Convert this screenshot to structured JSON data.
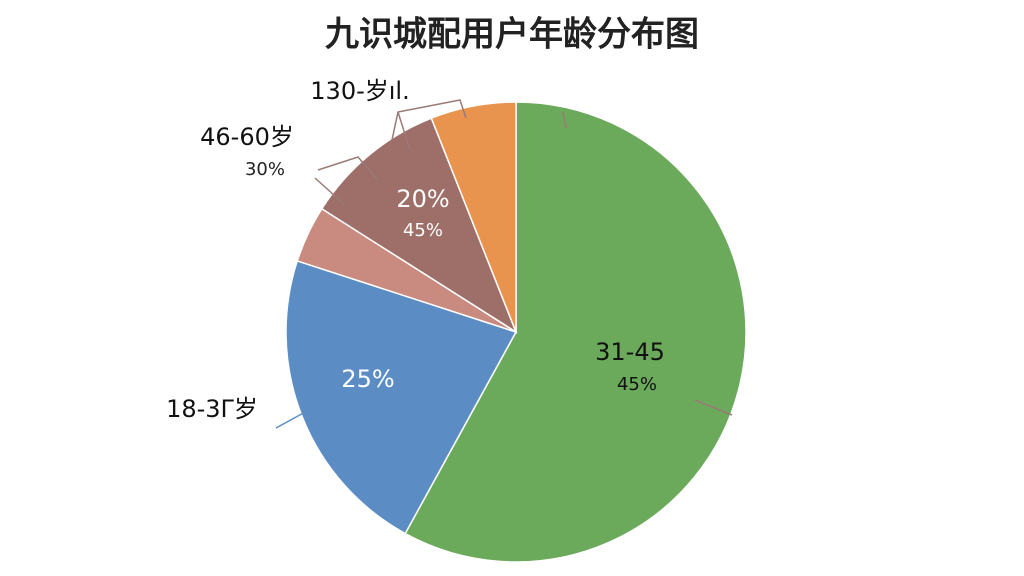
{
  "chart_data": {
    "type": "pie",
    "title": "九识城配用户年龄分布图",
    "categories": [
      "31-45",
      "18-3Γ岁",
      "46-60岁",
      null,
      "130-岁ıl."
    ],
    "values": [
      58,
      22,
      4,
      10,
      6
    ],
    "colors": [
      "#6aaa5a",
      "#5b8dc4",
      "#c98a80",
      "#9e6e68",
      "#e8944f"
    ],
    "annotations": [
      "30%",
      "20%",
      "45%",
      "45%",
      "25%"
    ]
  }
}
